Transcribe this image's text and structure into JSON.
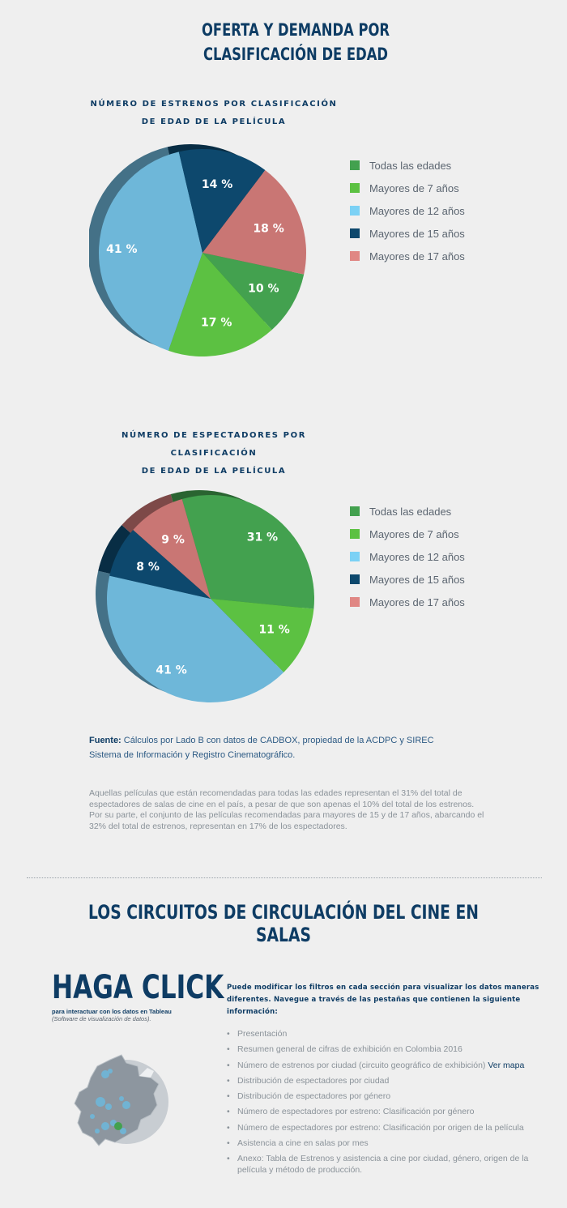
{
  "title_line1": "OFERTA Y DEMANDA POR",
  "title_line2": "CLASIFICACIÓN DE EDAD",
  "colors": {
    "Todas las edades": "#43a14f",
    "Mayores de 7 años": "#5cc142",
    "Mayores de 12 años": "#6eb7d9",
    "Mayores de 15 años": "#0d486d",
    "Mayores de 17 años": "#c97674"
  },
  "legend_colors": [
    "#43a14f",
    "#5cc142",
    "#7bd1f5",
    "#0d486d",
    "#e08784"
  ],
  "chart_data": [
    {
      "type": "pie",
      "title": "NÚMERO DE ESTRENOS POR CLASIFICACIÓN DE EDAD DE LA PELÍCULA",
      "title_line1": "NÚMERO DE ESTRENOS POR CLASIFICACIÓN",
      "title_line2": "DE EDAD DE LA PELÍCULA",
      "categories": [
        "Todas las edades",
        "Mayores de 7 años",
        "Mayores de 12 años",
        "Mayores de 15 años",
        "Mayores de 17 años"
      ],
      "values": [
        10,
        17,
        41,
        14,
        18
      ],
      "labels": [
        "10 %",
        "17 %",
        "41 %",
        "14 %",
        "18 %"
      ],
      "legend": "right"
    },
    {
      "type": "pie",
      "title": "NÚMERO DE ESPECTADORES POR CLASIFICACIÓN DE EDAD DE LA PELÍCULA",
      "title_line1": "NÚMERO DE ESPECTADORES POR CLASIFICACIÓN",
      "title_line2": "DE EDAD DE LA PELÍCULA",
      "categories": [
        "Todas las edades",
        "Mayores de 7 años",
        "Mayores de 12 años",
        "Mayores de 15 años",
        "Mayores de 17 años"
      ],
      "values": [
        31,
        11,
        41,
        8,
        9
      ],
      "labels": [
        "31 %",
        "11 %",
        "41 %",
        "8 %",
        "9 %"
      ],
      "legend": "right"
    }
  ],
  "source_label": "Fuente:",
  "source_text": " Cálculos por Lado B con datos de CADBOX, propiedad de la ACDPC y SIREC",
  "source_text2": "Sistema de Información y Registro Cinematográfico.",
  "paragraph": "Aquellas películas que están recomendadas para todas las edades representan el 31% del total de espectadores de salas de cine en el país, a pesar de que son apenas el 10% del total de los estrenos. Por su parte, el conjunto de las películas recomendadas para mayores de 15 y de 17 años, abarcando el 32% del total de estrenos, representan en 17% de los espectadores.",
  "section_title": "LOS CIRCUITOS DE CIRCULACIÓN DEL CINE EN SALAS",
  "haga_click": "HAGA CLICK",
  "haga_sub1": "para interactuar con los datos en Tableau",
  "haga_sub2": "(Software de visualización de datos).",
  "intro": "Puede modificar los filtros en cada sección para visualizar los datos maneras diferentes. Navegue a través de las pestañas que contienen la siguiente información:",
  "items": [
    "Presentación",
    "Resumen general de cifras de exhibición en Colombia 2016",
    "Número de estrenos por ciudad (circuito geográfico de exhibición)",
    "Distribución de espectadores por ciudad",
    "Distribución de espectadores por género",
    "Número de espectadores por estreno: Clasificación por género",
    "Número de espectadores por estreno: Clasificación por origen de la película",
    "Asistencia a cine en salas por mes",
    "Anexo: Tabla de Estrenos y asistencia a cine por ciudad, género, origen de la película y método de producción."
  ],
  "map_link": "Ver mapa"
}
